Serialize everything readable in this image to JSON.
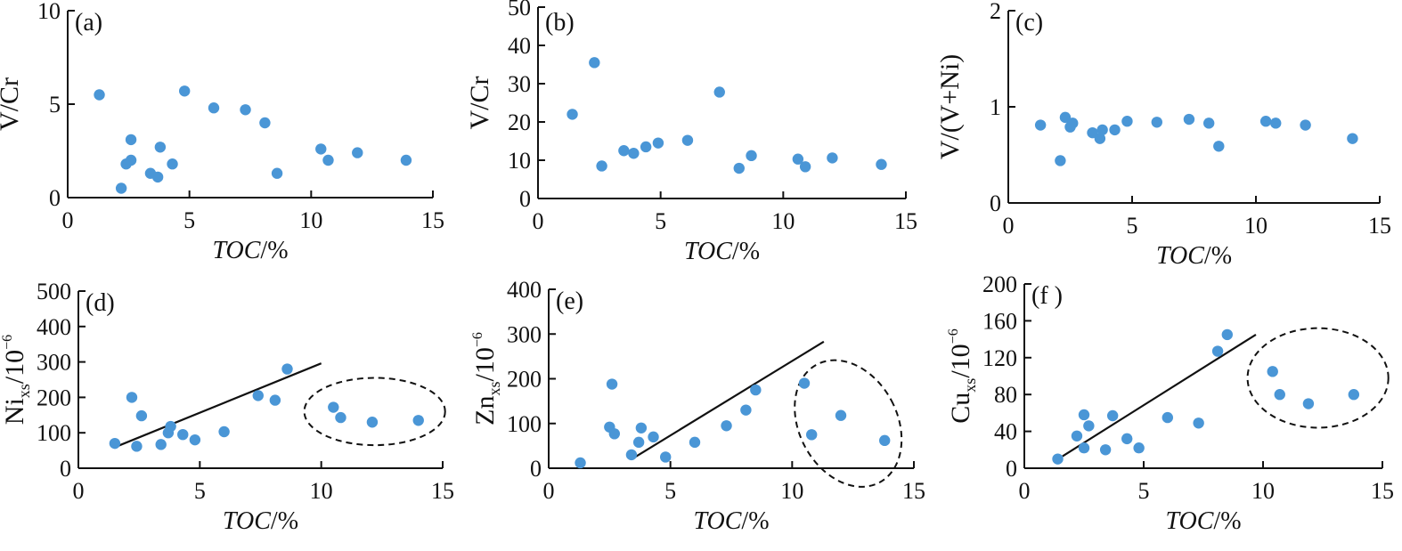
{
  "chart_data": [
    {
      "type": "scatter",
      "panel_label": "(a)",
      "xlabel": "TOC/%",
      "ylabel": "V/Cr",
      "xlim": [
        0,
        15
      ],
      "ylim": [
        0,
        10
      ],
      "xticks": [
        "0",
        "5",
        "10",
        "15"
      ],
      "yticks": [
        "0",
        "5",
        "10"
      ],
      "points": [
        [
          1.3,
          5.5
        ],
        [
          2.2,
          0.5
        ],
        [
          2.4,
          1.8
        ],
        [
          2.6,
          3.1
        ],
        [
          2.6,
          2.0
        ],
        [
          3.4,
          1.3
        ],
        [
          3.7,
          1.1
        ],
        [
          3.8,
          2.7
        ],
        [
          4.3,
          1.8
        ],
        [
          4.8,
          5.7
        ],
        [
          6.0,
          4.8
        ],
        [
          7.3,
          4.7
        ],
        [
          8.1,
          4.0
        ],
        [
          8.6,
          1.3
        ],
        [
          10.4,
          2.6
        ],
        [
          10.7,
          2.0
        ],
        [
          11.9,
          2.4
        ],
        [
          13.9,
          2.0
        ]
      ],
      "fit_line": null,
      "ellipse": null
    },
    {
      "type": "scatter",
      "panel_label": "(b)",
      "xlabel": "TOC/%",
      "ylabel": "V/Cr",
      "xlim": [
        0,
        15
      ],
      "ylim": [
        0,
        50
      ],
      "xticks": [
        "0",
        "5",
        "10",
        "15"
      ],
      "yticks": [
        "0",
        "10",
        "20",
        "30",
        "40",
        "50"
      ],
      "points": [
        [
          1.4,
          22
        ],
        [
          2.3,
          35.5
        ],
        [
          2.6,
          8.5
        ],
        [
          3.5,
          12.5
        ],
        [
          3.9,
          11.8
        ],
        [
          4.4,
          13.5
        ],
        [
          4.9,
          14.5
        ],
        [
          6.1,
          15.2
        ],
        [
          7.4,
          27.8
        ],
        [
          8.2,
          7.9
        ],
        [
          8.7,
          11.2
        ],
        [
          10.6,
          10.3
        ],
        [
          10.9,
          8.3
        ],
        [
          12.0,
          10.6
        ],
        [
          14.0,
          8.9
        ]
      ],
      "fit_line": null,
      "ellipse": null
    },
    {
      "type": "scatter",
      "panel_label": "(c)",
      "xlabel": "TOC/%",
      "ylabel": "V/(V+Ni)",
      "xlim": [
        0,
        15
      ],
      "ylim": [
        0,
        2
      ],
      "xticks": [
        "0",
        "5",
        "10",
        "15"
      ],
      "yticks": [
        "0",
        "1",
        "2"
      ],
      "points": [
        [
          1.3,
          0.81
        ],
        [
          2.1,
          0.44
        ],
        [
          2.3,
          0.89
        ],
        [
          2.5,
          0.79
        ],
        [
          2.6,
          0.83
        ],
        [
          3.4,
          0.73
        ],
        [
          3.7,
          0.67
        ],
        [
          3.8,
          0.76
        ],
        [
          4.3,
          0.76
        ],
        [
          4.8,
          0.85
        ],
        [
          6.0,
          0.84
        ],
        [
          7.3,
          0.87
        ],
        [
          8.1,
          0.83
        ],
        [
          8.5,
          0.59
        ],
        [
          10.4,
          0.85
        ],
        [
          10.8,
          0.83
        ],
        [
          12.0,
          0.81
        ],
        [
          13.9,
          0.67
        ]
      ],
      "fit_line": null,
      "ellipse": null
    },
    {
      "type": "scatter",
      "panel_label": "(d)",
      "xlabel": "TOC/%",
      "ylabel_main": "Ni",
      "ylabel_sub": "xs",
      "ylabel_unit": "/10",
      "ylabel_exp": "−6",
      "xlim": [
        0,
        15
      ],
      "ylim": [
        0,
        500
      ],
      "xticks": [
        "0",
        "5",
        "10",
        "15"
      ],
      "yticks": [
        "0",
        "100",
        "200",
        "300",
        "400",
        "500"
      ],
      "points": [
        [
          1.5,
          70
        ],
        [
          2.2,
          200
        ],
        [
          2.4,
          62
        ],
        [
          2.6,
          148
        ],
        [
          3.4,
          67
        ],
        [
          3.7,
          100
        ],
        [
          3.8,
          118
        ],
        [
          4.3,
          95
        ],
        [
          4.8,
          80
        ],
        [
          6.0,
          103
        ],
        [
          7.4,
          205
        ],
        [
          8.1,
          192
        ],
        [
          8.6,
          280
        ],
        [
          10.5,
          172
        ],
        [
          10.8,
          143
        ],
        [
          12.1,
          130
        ],
        [
          14.0,
          135
        ]
      ],
      "fit_line": [
        [
          1.6,
          62
        ],
        [
          10.0,
          296
        ]
      ],
      "ellipse": {
        "cx": 12.2,
        "cy": 160,
        "rx": 2.9,
        "ry": 95
      }
    },
    {
      "type": "scatter",
      "panel_label": "(e)",
      "xlabel": "TOC/%",
      "ylabel_main": "Zn",
      "ylabel_sub": "xs",
      "ylabel_unit": "/10",
      "ylabel_exp": "−6",
      "xlim": [
        0,
        15
      ],
      "ylim": [
        0,
        400
      ],
      "xticks": [
        "0",
        "5",
        "10",
        "15"
      ],
      "yticks": [
        "0",
        "100",
        "200",
        "300",
        "400"
      ],
      "points": [
        [
          1.3,
          12
        ],
        [
          2.5,
          92
        ],
        [
          2.6,
          188
        ],
        [
          2.7,
          77
        ],
        [
          3.4,
          30
        ],
        [
          3.7,
          58
        ],
        [
          3.8,
          90
        ],
        [
          4.3,
          70
        ],
        [
          4.8,
          25
        ],
        [
          6.0,
          58
        ],
        [
          7.3,
          95
        ],
        [
          8.1,
          130
        ],
        [
          8.5,
          175
        ],
        [
          10.5,
          190
        ],
        [
          10.8,
          75
        ],
        [
          12.0,
          118
        ],
        [
          13.8,
          62
        ]
      ],
      "fit_line": [
        [
          3.4,
          20
        ],
        [
          11.3,
          283
        ]
      ],
      "ellipse": {
        "cx": 12.3,
        "cy": 100,
        "rx": 1.7,
        "ry": 160
      }
    },
    {
      "type": "scatter",
      "panel_label": "(f )",
      "xlabel": "TOC/%",
      "ylabel_main": "Cu",
      "ylabel_sub": "xs",
      "ylabel_unit": "/10",
      "ylabel_exp": "−6",
      "xlim": [
        0,
        15
      ],
      "ylim": [
        0,
        200
      ],
      "xticks": [
        "0",
        "5",
        "10",
        "15"
      ],
      "yticks": [
        "0",
        "40",
        "80",
        "120",
        "160",
        "200"
      ],
      "points": [
        [
          1.4,
          10
        ],
        [
          2.2,
          35
        ],
        [
          2.5,
          58
        ],
        [
          2.5,
          22
        ],
        [
          2.7,
          46
        ],
        [
          3.4,
          20
        ],
        [
          3.7,
          57
        ],
        [
          4.3,
          32
        ],
        [
          4.8,
          22
        ],
        [
          6.0,
          55
        ],
        [
          7.3,
          49
        ],
        [
          8.1,
          127
        ],
        [
          8.5,
          145
        ],
        [
          10.4,
          105
        ],
        [
          10.7,
          80
        ],
        [
          11.9,
          70
        ],
        [
          13.8,
          80
        ]
      ],
      "fit_line": [
        [
          1.6,
          13
        ],
        [
          9.7,
          145
        ]
      ],
      "ellipse": {
        "cx": 12.3,
        "cy": 98,
        "rx": 2.95,
        "ry": 54
      }
    }
  ]
}
